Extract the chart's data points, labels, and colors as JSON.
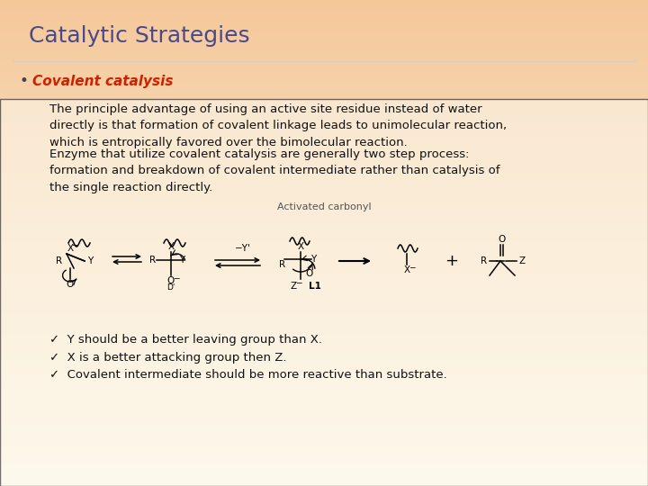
{
  "title": "Catalytic Strategies",
  "title_color": "#4a4a8a",
  "title_fontsize": 18,
  "bullet_label": "Covalent catalysis",
  "bullet_color": "#cc2200",
  "bullet_fontsize": 11,
  "paragraph1": "The principle advantage of using an active site residue instead of water\ndirectly is that formation of covalent linkage leads to unimolecular reaction,\nwhich is entropically favored over the bimolecular reaction.",
  "paragraph2": "Enzyme that utilize covalent catalysis are generally two step process:\nformation and breakdown of covalent intermediate rather than catalysis of\nthe single reaction directly.",
  "check1": "✓  Y should be a better leaving group than X.",
  "check2": "✓  X is a better attacking group then Z.",
  "check3": "✓  Covalent intermediate should be more reactive than substrate.",
  "body_fontsize": 9.5,
  "body_color": "#111111",
  "bg_top_left_color": "#f5c89a",
  "bg_top_right_color": "#fde8c0",
  "bg_bottom_color": "#fdf8e8",
  "diagram_label": "Activated carbonyl",
  "diagram_bg": "#ffffff"
}
